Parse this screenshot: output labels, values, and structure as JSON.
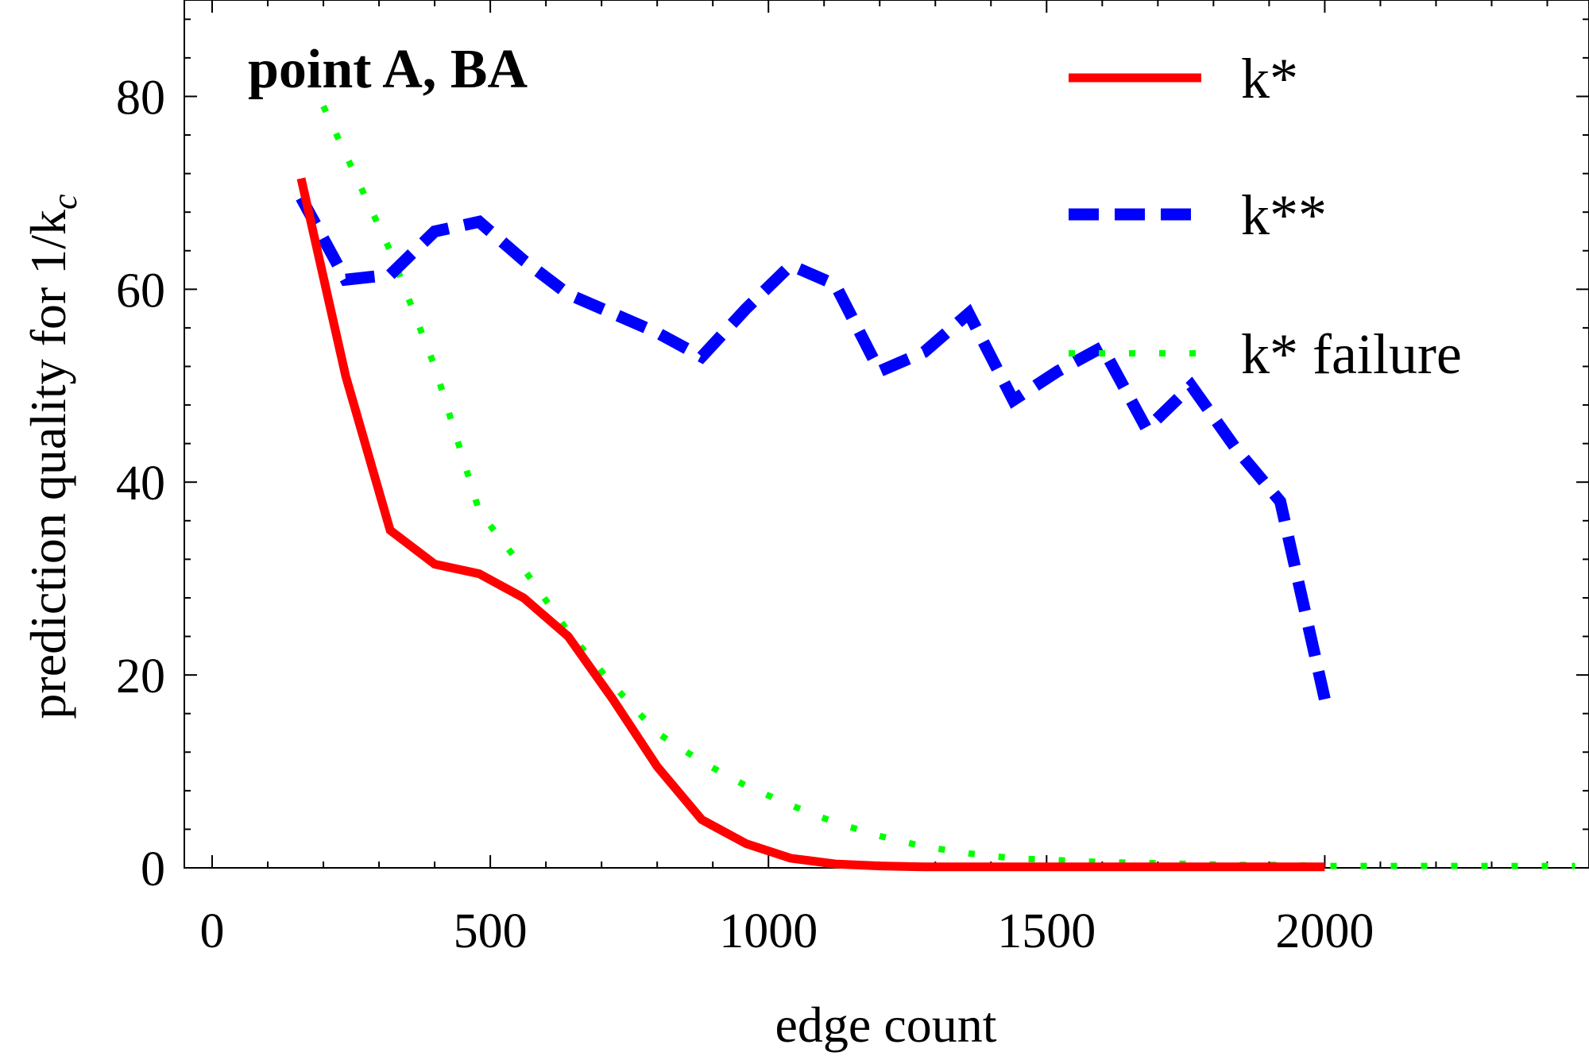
{
  "chart_data": {
    "type": "line",
    "title": "point A, BA",
    "xlabel": "edge count",
    "ylabel": "prediction quality for 1/k",
    "ylabel_subscript": "c",
    "xlim": [
      -50,
      2475
    ],
    "ylim": [
      0,
      90
    ],
    "xticks": [
      0,
      500,
      1000,
      1500,
      2000
    ],
    "yticks": [
      0,
      20,
      40,
      60,
      80
    ],
    "xtick_labels": [
      "0",
      "500",
      "1000",
      "1500",
      "2000"
    ],
    "ytick_labels": [
      "0",
      "20",
      "40",
      "60",
      "80"
    ],
    "grid": false,
    "legend_position": "top-right",
    "series": [
      {
        "name": "k*",
        "color": "#ff0000",
        "style": "solid",
        "x": [
          160,
          240,
          320,
          400,
          480,
          560,
          640,
          720,
          800,
          880,
          960,
          1040,
          1120,
          1200,
          1280,
          1360,
          1440,
          1520,
          1600,
          1680,
          1760,
          1840,
          1920,
          2000
        ],
        "y": [
          71.5,
          51,
          35,
          31.5,
          30.5,
          28,
          24,
          17.5,
          10.5,
          5,
          2.5,
          1,
          0.4,
          0.2,
          0.1,
          0.1,
          0.1,
          0.1,
          0.1,
          0.1,
          0.1,
          0.1,
          0.1,
          0.1
        ]
      },
      {
        "name": "k**",
        "color": "#0000ff",
        "style": "dashed",
        "x": [
          160,
          240,
          320,
          400,
          480,
          560,
          640,
          720,
          800,
          880,
          960,
          1040,
          1120,
          1200,
          1280,
          1360,
          1440,
          1520,
          1600,
          1680,
          1760,
          1840,
          1920,
          2000
        ],
        "y": [
          69.5,
          61,
          61.5,
          66,
          67,
          63,
          59.5,
          57.5,
          55.5,
          53,
          58,
          62.5,
          60.5,
          51.5,
          53.5,
          57.5,
          48.5,
          51.5,
          54,
          45.5,
          50,
          43.5,
          38,
          17.5
        ]
      },
      {
        "name": "k* failure",
        "color": "#00ff00",
        "style": "dotted",
        "x": [
          200,
          320,
          400,
          480,
          560,
          640,
          720,
          800,
          880,
          960,
          1040,
          1120,
          1200,
          1280,
          1360,
          1440,
          1520,
          1600,
          1680,
          1760,
          1840,
          1920,
          2000,
          2100,
          2200,
          2300,
          2400,
          2450
        ],
        "y": [
          79,
          64,
          52,
          37,
          31,
          24.5,
          19,
          14,
          11,
          8.5,
          6.5,
          4.7,
          3.3,
          2.2,
          1.5,
          1,
          0.8,
          0.6,
          0.5,
          0.4,
          0.3,
          0.3,
          0.2,
          0.2,
          0.2,
          0.2,
          0.2,
          0.2
        ]
      }
    ]
  }
}
